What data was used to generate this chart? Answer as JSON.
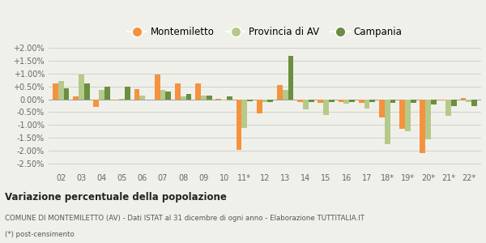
{
  "categories": [
    "02",
    "03",
    "04",
    "05",
    "06",
    "07",
    "08",
    "09",
    "10",
    "11*",
    "12",
    "13",
    "14",
    "15",
    "16",
    "17",
    "18*",
    "19*",
    "20*",
    "21*",
    "22*"
  ],
  "montemiletto": [
    0.006,
    0.001,
    -0.003,
    -0.0005,
    0.004,
    0.0097,
    0.0062,
    0.0062,
    0.0002,
    -0.0195,
    -0.0055,
    0.0055,
    -0.001,
    -0.0015,
    -0.001,
    -0.0015,
    -0.007,
    -0.0115,
    -0.021,
    -0.0005,
    0.0005
  ],
  "provincia_av": [
    0.007,
    0.0095,
    0.0035,
    0.0002,
    0.0013,
    0.0035,
    0.001,
    0.0015,
    -0.0005,
    -0.011,
    -0.001,
    0.0037,
    -0.0038,
    -0.006,
    -0.0018,
    -0.0035,
    -0.0175,
    -0.0125,
    -0.0155,
    -0.0065,
    -0.001
  ],
  "campania": [
    0.0042,
    0.006,
    0.005,
    0.005,
    0.0,
    0.003,
    0.0022,
    0.0015,
    0.0012,
    -0.0007,
    -0.0012,
    0.0168,
    -0.001,
    -0.001,
    -0.001,
    -0.0012,
    -0.0015,
    -0.0015,
    -0.002,
    -0.0025,
    -0.0028
  ],
  "color_montemiletto": "#f5923e",
  "color_provincia_av": "#b5c98a",
  "color_campania": "#6b8f3e",
  "bg_color": "#f0f0eb",
  "grid_color": "#d0d0cc",
  "ylim_min": -0.0275,
  "ylim_max": 0.0225,
  "title_bold": "Variazione percentuale della popolazione",
  "subtitle1": "COMUNE DI MONTEMILETTO (AV) - Dati ISTAT al 31 dicembre di ogni anno - Elaborazione TUTTITALIA.IT",
  "subtitle2": "(*) post-censimento",
  "legend_labels": [
    "Montemiletto",
    "Provincia di AV",
    "Campania"
  ]
}
